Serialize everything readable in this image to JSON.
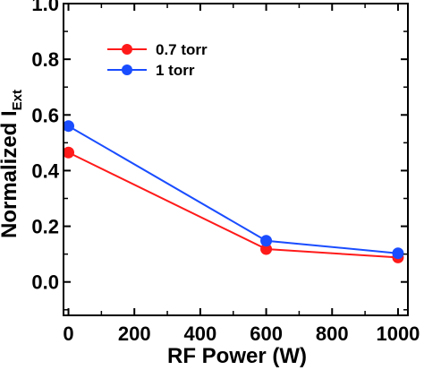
{
  "chart_data": {
    "type": "line",
    "title": "",
    "xlabel": "RF Power (W)",
    "ylabel": {
      "main": "Normalized I",
      "subscript": "Ext"
    },
    "xlim": [
      -15,
      1030
    ],
    "ylim": [
      -0.12,
      1.0
    ],
    "xticks": [
      0,
      200,
      400,
      600,
      800,
      1000
    ],
    "xtick_labels": [
      "0",
      "200",
      "400",
      "600",
      "800",
      "1000"
    ],
    "yticks": [
      0.0,
      0.2,
      0.4,
      0.6,
      0.8,
      1.0
    ],
    "ytick_labels": [
      "0.0",
      "0.2",
      "0.4",
      "0.6",
      "0.8",
      "1.0"
    ],
    "grid": false,
    "legend_position": "upper-left",
    "series": [
      {
        "name": "0.7 torr",
        "color": "#ff1a1a",
        "x": [
          0,
          600,
          1000
        ],
        "y": [
          0.465,
          0.118,
          0.088
        ]
      },
      {
        "name": "1 torr",
        "color": "#1a4dff",
        "x": [
          0,
          600,
          1000
        ],
        "y": [
          0.56,
          0.148,
          0.103
        ]
      }
    ]
  }
}
